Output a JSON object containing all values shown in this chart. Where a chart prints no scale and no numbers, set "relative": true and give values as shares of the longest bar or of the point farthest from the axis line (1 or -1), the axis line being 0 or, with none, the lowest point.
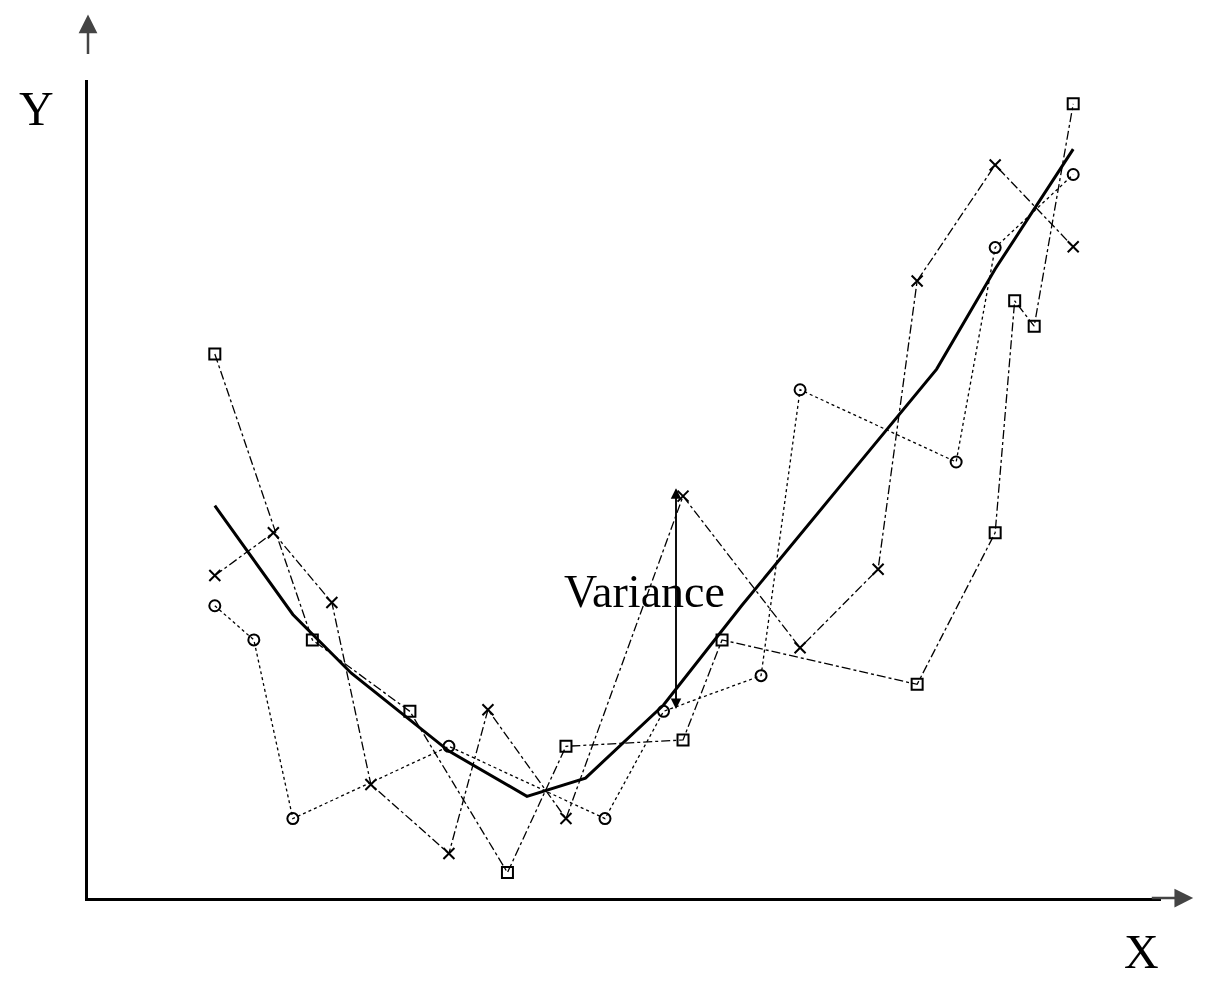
{
  "chart_data": {
    "type": "line",
    "relative": true,
    "xlabel": "X",
    "ylabel": "Y",
    "grid": false,
    "annotations": [
      "Variance"
    ],
    "categories": [
      null,
      null,
      null,
      null,
      null,
      null,
      null,
      null,
      null,
      null,
      null,
      null,
      null,
      null,
      null,
      null,
      null,
      null,
      null,
      null,
      null,
      null,
      null,
      null,
      null,
      null,
      null,
      null,
      null,
      null,
      null,
      null,
      null,
      null,
      null,
      null,
      null,
      null,
      null,
      null,
      null,
      null,
      null,
      null,
      null,
      null,
      null,
      null,
      null,
      null,
      null,
      null,
      null,
      null,
      null
    ],
    "series": [
      {
        "color": "#000000",
        "marker": "none",
        "line_style": "solid",
        "values": [
          null,
          null,
          null,
          null,
          null,
          null,
          0.494,
          null,
          null,
          null,
          0.357,
          null,
          null,
          0.283,
          null,
          null,
          null,
          null,
          0.185,
          null,
          null,
          null,
          0.128,
          null,
          null,
          0.151,
          null,
          null,
          null,
          0.243,
          null,
          null,
          null,
          0.368,
          null,
          null,
          null,
          null,
          0.517,
          null,
          null,
          null,
          null,
          0.666,
          null,
          null,
          0.792,
          null,
          null,
          null,
          0.943,
          null,
          null,
          null,
          null
        ]
      },
      {
        "color": "#000000",
        "marker": "cross",
        "line_style": "dashed",
        "values": [
          null,
          null,
          null,
          null,
          null,
          null,
          0.406,
          null,
          null,
          0.46,
          null,
          null,
          0.372,
          null,
          0.143,
          null,
          null,
          null,
          0.056,
          null,
          0.237,
          null,
          null,
          null,
          0.1,
          null,
          null,
          null,
          null,
          null,
          0.506,
          null,
          null,
          null,
          null,
          null,
          0.315,
          null,
          null,
          null,
          0.414,
          null,
          0.777,
          null,
          null,
          null,
          0.923,
          null,
          null,
          null,
          0.82,
          null,
          null,
          null,
          null
        ]
      },
      {
        "color": "#000000",
        "marker": "circle",
        "line_style": "dotted",
        "values": [
          null,
          null,
          null,
          null,
          null,
          null,
          0.368,
          null,
          0.325,
          null,
          0.1,
          null,
          null,
          null,
          null,
          null,
          null,
          null,
          0.191,
          null,
          null,
          null,
          null,
          null,
          null,
          null,
          0.1,
          null,
          null,
          0.235,
          null,
          null,
          null,
          null,
          0.28,
          null,
          0.64,
          null,
          null,
          null,
          null,
          null,
          null,
          null,
          0.549,
          null,
          0.819,
          null,
          null,
          null,
          0.911,
          null,
          null,
          null,
          null
        ]
      },
      {
        "color": "#000000",
        "marker": "square",
        "line_style": "dashed",
        "values": [
          null,
          null,
          null,
          null,
          null,
          null,
          0.685,
          null,
          null,
          null,
          null,
          0.325,
          null,
          null,
          null,
          null,
          0.235,
          null,
          null,
          null,
          null,
          0.032,
          null,
          null,
          0.191,
          null,
          null,
          null,
          null,
          null,
          0.199,
          null,
          0.325,
          null,
          null,
          null,
          null,
          null,
          null,
          null,
          null,
          null,
          0.269,
          null,
          null,
          null,
          0.46,
          0.752,
          0.72,
          null,
          1.0,
          null,
          null,
          null,
          null
        ]
      }
    ]
  }
}
